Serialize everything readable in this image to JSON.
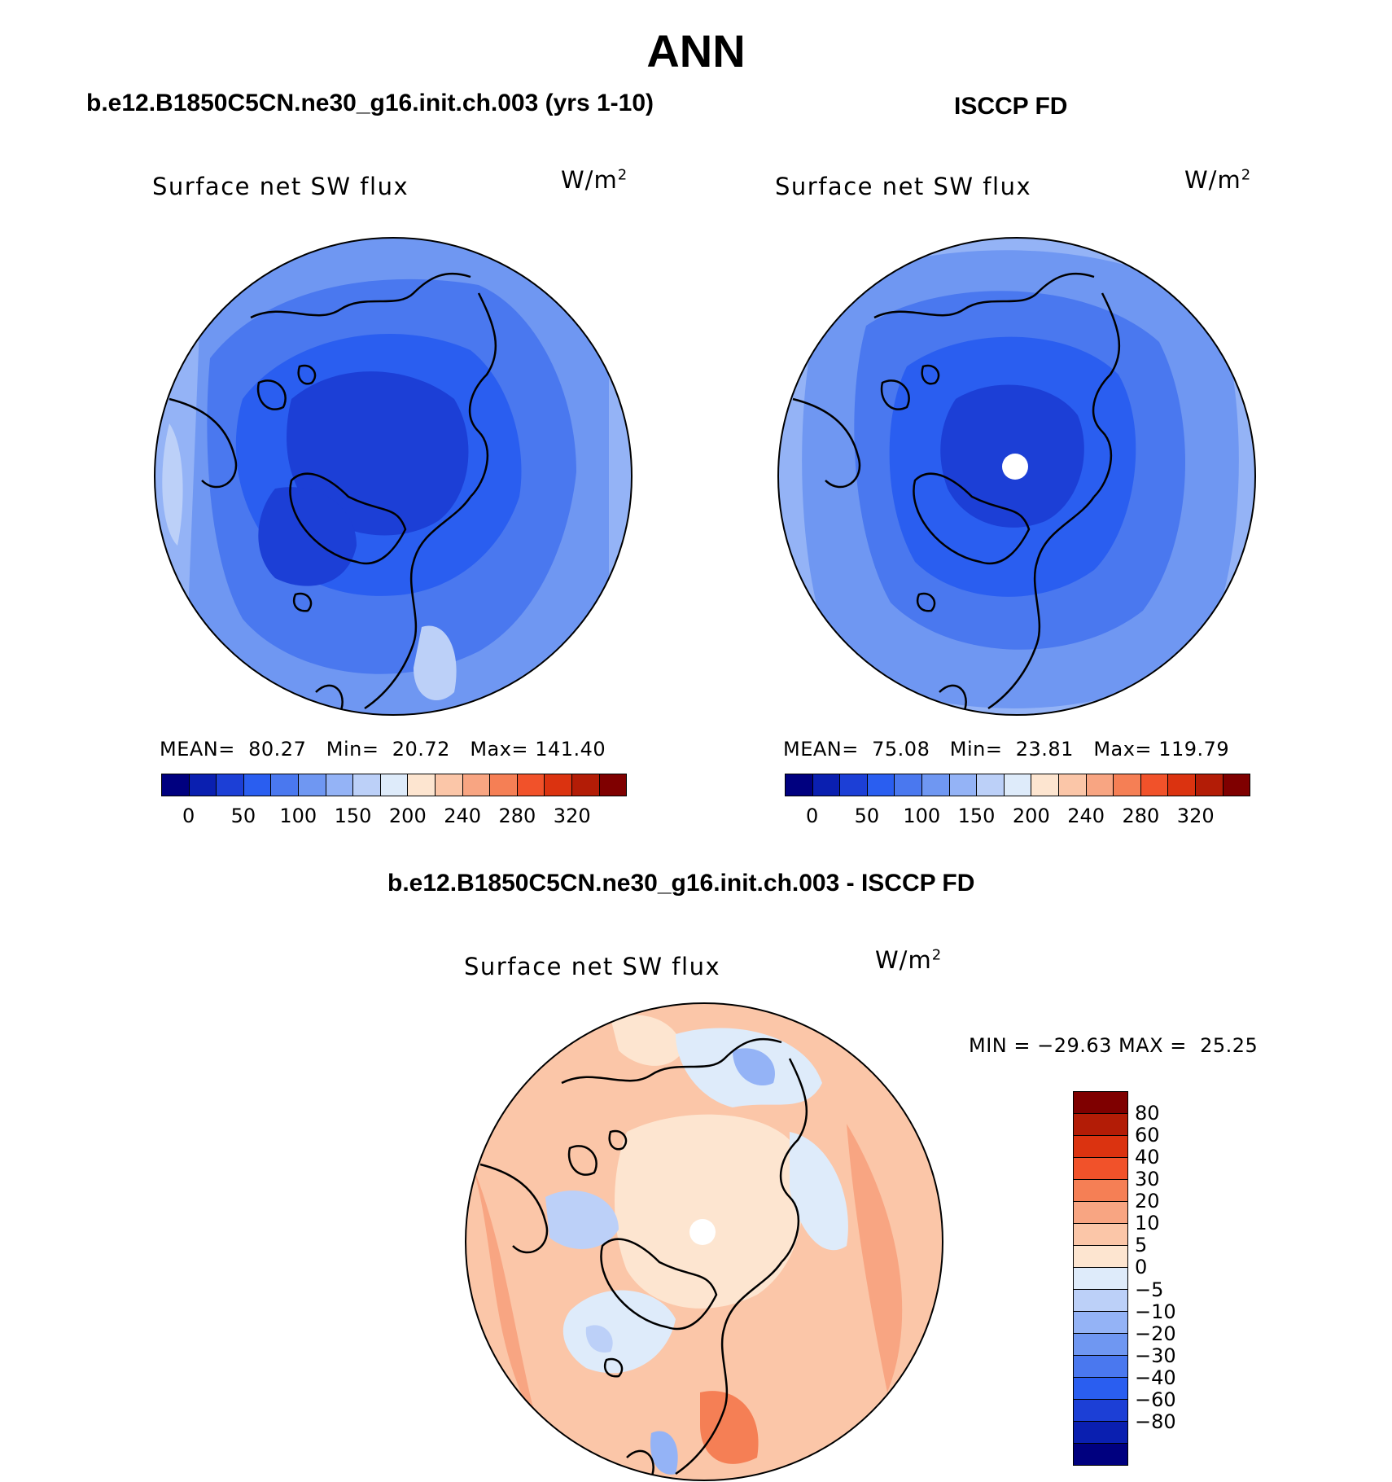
{
  "figure": {
    "title": "ANN",
    "panels": [
      {
        "case_title": "b.e12.B1850C5CN.ne30_g16.init.ch.003 (yrs 1-10)",
        "variable": "Surface net SW flux",
        "units_base": "W/m",
        "units_exp": "2",
        "stats": {
          "mean_label": "MEAN=",
          "mean": "80.27",
          "min_label": "Min=",
          "min": "20.72",
          "max_label": "Max=",
          "max": "141.40"
        }
      },
      {
        "case_title": "ISCCP FD",
        "variable": "Surface net SW flux",
        "units_base": "W/m",
        "units_exp": "2",
        "stats": {
          "mean_label": "MEAN=",
          "mean": "75.08",
          "min_label": "Min=",
          "min": "23.81",
          "max_label": "Max=",
          "max": "119.79"
        }
      },
      {
        "case_title": "b.e12.B1850C5CN.ne30_g16.init.ch.003 - ISCCP FD",
        "variable": "Surface net SW flux",
        "units_base": "W/m",
        "units_exp": "2",
        "minmax": "MIN = −29.63 MAX =  25.25"
      }
    ],
    "abs_colorbar": {
      "colors": [
        "#00007f",
        "#0a1fb0",
        "#1c3fd6",
        "#2a5ef0",
        "#4a78ef",
        "#6f97f2",
        "#94b3f6",
        "#bcd0f8",
        "#deebfa",
        "#fde5d0",
        "#fbc6a8",
        "#f8a582",
        "#f57f55",
        "#f1522a",
        "#db3310",
        "#b31c06",
        "#7f0000"
      ],
      "tick_labels": [
        "0",
        "50",
        "100",
        "150",
        "200",
        "240",
        "280",
        "320"
      ]
    },
    "diff_colorbar": {
      "colors_top_to_bottom": [
        "#7f0000",
        "#b31c06",
        "#db3310",
        "#f1522a",
        "#f57f55",
        "#f8a582",
        "#fbc6a8",
        "#fde5d0",
        "#deebfa",
        "#bcd0f8",
        "#94b3f6",
        "#6f97f2",
        "#4a78ef",
        "#2a5ef0",
        "#1c3fd6",
        "#0a1fb0",
        "#00007f"
      ],
      "tick_labels": [
        "80",
        "60",
        "40",
        "30",
        "20",
        "10",
        "5",
        "0",
        "−5",
        "−10",
        "−20",
        "−30",
        "−40",
        "−60",
        "−80"
      ]
    }
  }
}
